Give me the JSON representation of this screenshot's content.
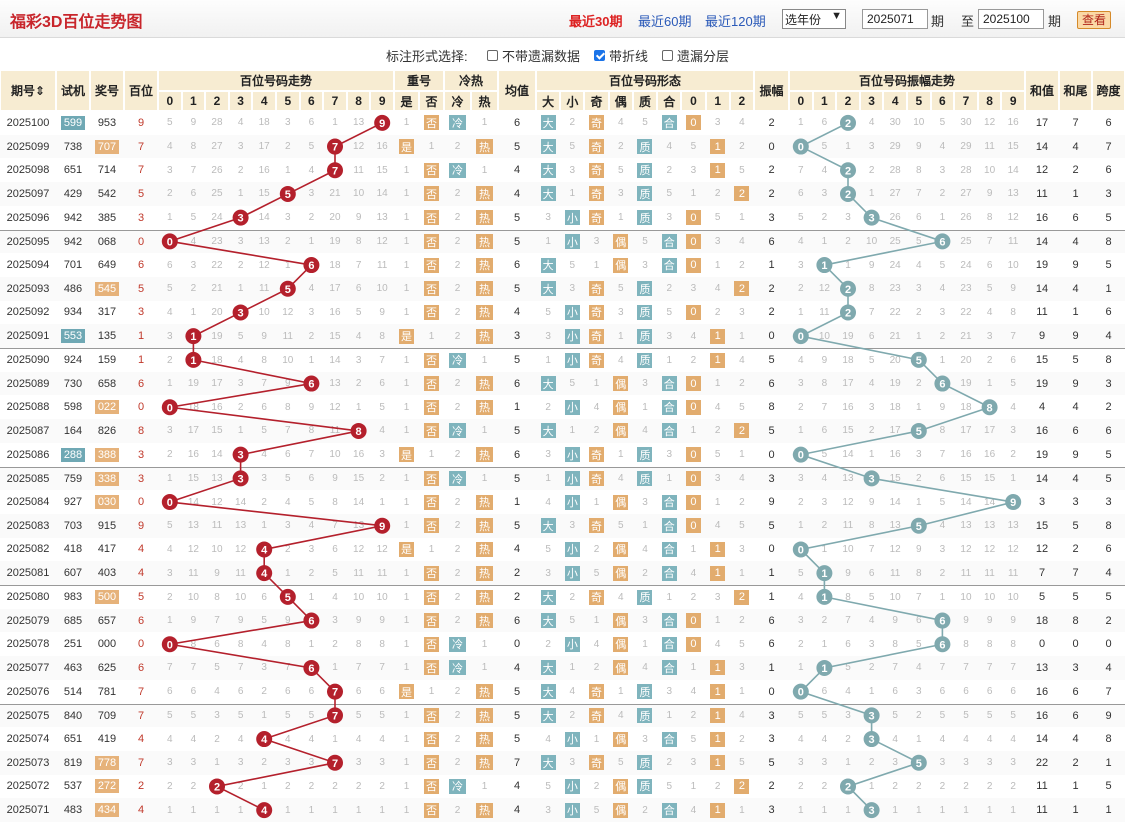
{
  "header": {
    "title": "福彩3D百位走势图",
    "nav": [
      "最近30期",
      "最近60期",
      "最近120期"
    ],
    "nav_active": 0,
    "year_select": "选年份",
    "from": "2025071",
    "from_suffix": "期",
    "to_label": "至",
    "to": "2025100",
    "to_suffix": "期",
    "query": "查看"
  },
  "options": {
    "label": "标注形式选择:",
    "items": [
      {
        "label": "不带遗漏数据",
        "checked": false
      },
      {
        "label": "带折线",
        "checked": true
      },
      {
        "label": "遗漏分层",
        "checked": false
      }
    ]
  },
  "columns": {
    "issue": "期号",
    "trial": "试机",
    "draw": "奖号",
    "hundred": "百位",
    "trend": "百位号码走势",
    "repeat": "重号",
    "hotcold": "冷热",
    "avg": "均值",
    "form": "百位号码形态",
    "amp": "振幅",
    "amptrend": "百位号码振幅走势",
    "sum": "和值",
    "tail": "和尾",
    "span": "跨度",
    "digits": [
      "0",
      "1",
      "2",
      "3",
      "4",
      "5",
      "6",
      "7",
      "8",
      "9"
    ],
    "repeat_sub": [
      "是",
      "否"
    ],
    "hotcold_sub": [
      "冷",
      "热"
    ],
    "form_sub": [
      "大",
      "小",
      "奇",
      "偶",
      "质",
      "合",
      "0",
      "1",
      "2"
    ]
  },
  "rows": [
    {
      "issue": "2025100",
      "trial": "599",
      "draw": "953",
      "h": 9,
      "amp": 2,
      "sum": 17,
      "tail": 7,
      "span": 6,
      "avg": 6,
      "big": "大",
      "odd": "奇",
      "prime": "合",
      "r": 0,
      "rep": "否",
      "hc": "冷"
    },
    {
      "issue": "2025099",
      "trial": "738",
      "draw": "707",
      "h": 7,
      "amp": 0,
      "sum": 14,
      "tail": 4,
      "span": 7,
      "avg": 5,
      "big": "大",
      "odd": "奇",
      "prime": "质",
      "r": 1,
      "rep": "是",
      "hc": "热"
    },
    {
      "issue": "2025098",
      "trial": "651",
      "draw": "714",
      "h": 7,
      "amp": 2,
      "sum": 12,
      "tail": 2,
      "span": 6,
      "avg": 4,
      "big": "大",
      "odd": "奇",
      "prime": "质",
      "r": 1,
      "rep": "否",
      "hc": "冷"
    },
    {
      "issue": "2025097",
      "trial": "429",
      "draw": "542",
      "h": 5,
      "amp": 2,
      "sum": 11,
      "tail": 1,
      "span": 3,
      "avg": 4,
      "big": "大",
      "odd": "奇",
      "prime": "质",
      "r": 2,
      "rep": "否",
      "hc": "热"
    },
    {
      "issue": "2025096",
      "trial": "942",
      "draw": "385",
      "h": 3,
      "amp": 3,
      "sum": 16,
      "tail": 6,
      "span": 5,
      "avg": 5,
      "big": "小",
      "odd": "奇",
      "prime": "质",
      "r": 0,
      "rep": "否",
      "hc": "热"
    },
    {
      "issue": "2025095",
      "trial": "942",
      "draw": "068",
      "h": 0,
      "amp": 6,
      "sum": 14,
      "tail": 4,
      "span": 8,
      "avg": 5,
      "big": "小",
      "odd": "偶",
      "prime": "合",
      "r": 0,
      "rep": "否",
      "hc": "热"
    },
    {
      "issue": "2025094",
      "trial": "701",
      "draw": "649",
      "h": 6,
      "amp": 1,
      "sum": 19,
      "tail": 9,
      "span": 5,
      "avg": 6,
      "big": "大",
      "odd": "偶",
      "prime": "合",
      "r": 0,
      "rep": "否",
      "hc": "热"
    },
    {
      "issue": "2025093",
      "trial": "486",
      "draw": "545",
      "h": 5,
      "amp": 2,
      "sum": 14,
      "tail": 4,
      "span": 1,
      "avg": 5,
      "big": "大",
      "odd": "奇",
      "prime": "质",
      "r": 2,
      "rep": "否",
      "hc": "热"
    },
    {
      "issue": "2025092",
      "trial": "934",
      "draw": "317",
      "h": 3,
      "amp": 2,
      "sum": 11,
      "tail": 1,
      "span": 6,
      "avg": 4,
      "big": "小",
      "odd": "奇",
      "prime": "质",
      "r": 0,
      "rep": "否",
      "hc": "热"
    },
    {
      "issue": "2025091",
      "trial": "553",
      "draw": "135",
      "h": 1,
      "amp": 0,
      "sum": 9,
      "tail": 9,
      "span": 4,
      "avg": 3,
      "big": "小",
      "odd": "奇",
      "prime": "质",
      "r": 1,
      "rep": "是",
      "hc": "热"
    },
    {
      "issue": "2025090",
      "trial": "924",
      "draw": "159",
      "h": 1,
      "amp": 5,
      "sum": 15,
      "tail": 5,
      "span": 8,
      "avg": 5,
      "big": "小",
      "odd": "奇",
      "prime": "质",
      "r": 1,
      "rep": "否",
      "hc": "冷"
    },
    {
      "issue": "2025089",
      "trial": "730",
      "draw": "658",
      "h": 6,
      "amp": 6,
      "sum": 19,
      "tail": 9,
      "span": 3,
      "avg": 6,
      "big": "大",
      "odd": "偶",
      "prime": "合",
      "r": 0,
      "rep": "否",
      "hc": "热"
    },
    {
      "issue": "2025088",
      "trial": "598",
      "draw": "022",
      "h": 0,
      "amp": 8,
      "sum": 4,
      "tail": 4,
      "span": 2,
      "avg": 1,
      "big": "小",
      "odd": "偶",
      "prime": "合",
      "r": 0,
      "rep": "否",
      "hc": "热"
    },
    {
      "issue": "2025087",
      "trial": "164",
      "draw": "826",
      "h": 8,
      "amp": 5,
      "sum": 16,
      "tail": 6,
      "span": 6,
      "avg": 5,
      "big": "大",
      "odd": "偶",
      "prime": "合",
      "r": 2,
      "rep": "否",
      "hc": "冷"
    },
    {
      "issue": "2025086",
      "trial": "288",
      "draw": "388",
      "h": 3,
      "amp": 0,
      "sum": 19,
      "tail": 9,
      "span": 5,
      "avg": 6,
      "big": "小",
      "odd": "奇",
      "prime": "质",
      "r": 0,
      "rep": "是",
      "hc": "热"
    },
    {
      "issue": "2025085",
      "trial": "759",
      "draw": "338",
      "h": 3,
      "amp": 3,
      "sum": 14,
      "tail": 4,
      "span": 5,
      "avg": 5,
      "big": "小",
      "odd": "奇",
      "prime": "质",
      "r": 0,
      "rep": "否",
      "hc": "冷"
    },
    {
      "issue": "2025084",
      "trial": "927",
      "draw": "030",
      "h": 0,
      "amp": 9,
      "sum": 3,
      "tail": 3,
      "span": 3,
      "avg": 1,
      "big": "小",
      "odd": "偶",
      "prime": "合",
      "r": 0,
      "rep": "否",
      "hc": "热"
    },
    {
      "issue": "2025083",
      "trial": "703",
      "draw": "915",
      "h": 9,
      "amp": 5,
      "sum": 15,
      "tail": 5,
      "span": 8,
      "avg": 5,
      "big": "大",
      "odd": "奇",
      "prime": "合",
      "r": 0,
      "rep": "否",
      "hc": "热"
    },
    {
      "issue": "2025082",
      "trial": "418",
      "draw": "417",
      "h": 4,
      "amp": 0,
      "sum": 12,
      "tail": 2,
      "span": 6,
      "avg": 4,
      "big": "小",
      "odd": "偶",
      "prime": "合",
      "r": 1,
      "rep": "是",
      "hc": "热"
    },
    {
      "issue": "2025081",
      "trial": "607",
      "draw": "403",
      "h": 4,
      "amp": 1,
      "sum": 7,
      "tail": 7,
      "span": 4,
      "avg": 2,
      "big": "小",
      "odd": "偶",
      "prime": "合",
      "r": 1,
      "rep": "否",
      "hc": "热"
    },
    {
      "issue": "2025080",
      "trial": "983",
      "draw": "500",
      "h": 5,
      "amp": 1,
      "sum": 5,
      "tail": 5,
      "span": 5,
      "avg": 2,
      "big": "大",
      "odd": "奇",
      "prime": "质",
      "r": 2,
      "rep": "否",
      "hc": "热"
    },
    {
      "issue": "2025079",
      "trial": "685",
      "draw": "657",
      "h": 6,
      "amp": 6,
      "sum": 18,
      "tail": 8,
      "span": 2,
      "avg": 6,
      "big": "大",
      "odd": "偶",
      "prime": "合",
      "r": 0,
      "rep": "否",
      "hc": "热"
    },
    {
      "issue": "2025078",
      "trial": "251",
      "draw": "000",
      "h": 0,
      "amp": 6,
      "sum": 0,
      "tail": 0,
      "span": 0,
      "avg": 0,
      "big": "小",
      "odd": "偶",
      "prime": "合",
      "r": 0,
      "rep": "否",
      "hc": "冷"
    },
    {
      "issue": "2025077",
      "trial": "463",
      "draw": "625",
      "h": 6,
      "amp": 1,
      "sum": 13,
      "tail": 3,
      "span": 4,
      "avg": 4,
      "big": "大",
      "odd": "偶",
      "prime": "合",
      "r": 1,
      "rep": "否",
      "hc": "冷"
    },
    {
      "issue": "2025076",
      "trial": "514",
      "draw": "781",
      "h": 7,
      "amp": 0,
      "sum": 16,
      "tail": 6,
      "span": 7,
      "avg": 5,
      "big": "大",
      "odd": "奇",
      "prime": "质",
      "r": 1,
      "rep": "是",
      "hc": "热"
    },
    {
      "issue": "2025075",
      "trial": "840",
      "draw": "709",
      "h": 7,
      "amp": 3,
      "sum": 16,
      "tail": 6,
      "span": 9,
      "avg": 5,
      "big": "大",
      "odd": "奇",
      "prime": "质",
      "r": 1,
      "rep": "否",
      "hc": "热"
    },
    {
      "issue": "2025074",
      "trial": "651",
      "draw": "419",
      "h": 4,
      "amp": 3,
      "sum": 14,
      "tail": 4,
      "span": 8,
      "avg": 5,
      "big": "小",
      "odd": "偶",
      "prime": "合",
      "r": 1,
      "rep": "否",
      "hc": "热"
    },
    {
      "issue": "2025073",
      "trial": "819",
      "draw": "778",
      "h": 7,
      "amp": 5,
      "sum": 22,
      "tail": 2,
      "span": 1,
      "avg": 7,
      "big": "大",
      "odd": "奇",
      "prime": "质",
      "r": 1,
      "rep": "否",
      "hc": "热"
    },
    {
      "issue": "2025072",
      "trial": "537",
      "draw": "272",
      "h": 2,
      "amp": 2,
      "sum": 11,
      "tail": 1,
      "span": 5,
      "avg": 4,
      "big": "小",
      "odd": "偶",
      "prime": "质",
      "r": 2,
      "rep": "否",
      "hc": "冷"
    },
    {
      "issue": "2025071",
      "trial": "483",
      "draw": "434",
      "h": 4,
      "amp": 3,
      "sum": 11,
      "tail": 1,
      "span": 1,
      "avg": 4,
      "big": "小",
      "odd": "偶",
      "prime": "合",
      "r": 1,
      "rep": "否",
      "hc": "热"
    }
  ],
  "trial_highlight": [
    "599",
    "707",
    "545",
    "553",
    "022",
    "288",
    "388",
    "338",
    "030",
    "500",
    "778",
    "272",
    "434"
  ],
  "colors": {
    "red": "#b4202c",
    "teal": "#7fa9ae",
    "header_bg": "#f7ecd2"
  }
}
